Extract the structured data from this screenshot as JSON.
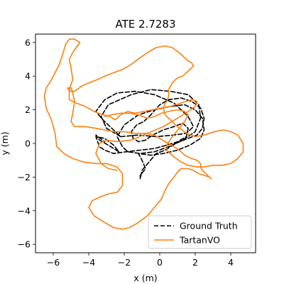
{
  "chart_data": {
    "type": "line",
    "title": "ATE 2.7283",
    "xlabel": "x (m)",
    "ylabel": "y (m)",
    "xlim": [
      -7.0,
      5.4
    ],
    "ylim": [
      -6.5,
      6.5
    ],
    "xticks": [
      -6,
      -4,
      -2,
      0,
      2,
      4
    ],
    "yticks": [
      -6,
      -4,
      -2,
      0,
      2,
      4,
      6
    ],
    "grid": false,
    "legend": "lower-right",
    "series": [
      {
        "name": "Ground Truth",
        "style": "dashed",
        "color": "#000000",
        "x": [
          -2.2,
          -1.2,
          -0.2,
          0.8,
          1.5,
          1.9,
          1.6,
          0.8,
          -0.3,
          -1.4,
          -2.4,
          -3.1,
          -3.6,
          -3.2,
          -2.7,
          -2.2,
          -3.0,
          -3.3,
          -2.9,
          -1.6,
          -0.5,
          0.6,
          1.6,
          2.2,
          2.3,
          2.0,
          1.3,
          0.5,
          -0.3,
          -1.1,
          -1.8,
          -2.1,
          -2.4,
          -2.0,
          -1.2,
          -0.3,
          0.6,
          1.4,
          2.0,
          2.4,
          2.5,
          2.3,
          1.7,
          1.0,
          0.2,
          -0.5,
          -1.2,
          -1.0,
          -0.8,
          -1.1,
          -1.1,
          -1.0,
          -0.6,
          -0.2,
          0.3,
          0.9,
          1.6,
          2.1,
          2.4,
          2.5,
          2.3,
          1.8,
          1.2,
          0.5,
          0.0,
          -0.5,
          -0.9,
          -1.3,
          -1.6,
          -1.5,
          -1.2,
          -0.8,
          -0.4,
          0.2,
          0.8,
          1.3,
          1.6,
          1.5,
          1.0,
          0.4,
          -0.3,
          -1.1,
          -1.9,
          -2.6,
          -3.1,
          -3.4,
          -3.6,
          -3.1,
          -2.6,
          -2.3,
          -2.9,
          -3.4,
          -3.6,
          -3.1
        ],
        "y": [
          0.4,
          0.5,
          0.4,
          0.5,
          0.6,
          1.0,
          1.6,
          2.4,
          2.9,
          3.1,
          3.0,
          2.6,
          1.9,
          1.4,
          0.9,
          0.4,
          0.9,
          1.6,
          2.3,
          2.9,
          3.2,
          3.1,
          2.9,
          2.3,
          1.5,
          0.7,
          0.2,
          -0.2,
          -0.5,
          -0.6,
          -0.5,
          -0.2,
          0.4,
          1.1,
          1.7,
          2.0,
          2.2,
          2.3,
          2.0,
          1.5,
          0.8,
          0.3,
          -0.1,
          -0.4,
          -0.6,
          -0.7,
          -0.6,
          -1.0,
          -1.5,
          -1.9,
          -2.1,
          -1.6,
          -1.1,
          -0.6,
          -0.4,
          0.0,
          0.3,
          0.5,
          0.9,
          1.5,
          2.1,
          2.5,
          2.7,
          2.6,
          2.3,
          1.7,
          1.3,
          1.1,
          0.7,
          0.3,
          0.1,
          0.2,
          0.5,
          0.8,
          1.0,
          1.2,
          0.9,
          0.4,
          0.1,
          -0.1,
          -0.3,
          -0.4,
          -0.5,
          -0.6,
          -0.4,
          -0.2,
          0.4,
          0.3,
          -0.1,
          -0.5,
          -0.1,
          0.2,
          0.5,
          0.1
        ]
      },
      {
        "name": "TartanVO",
        "style": "solid",
        "color": "#ff7f0e",
        "x": [
          -2.4,
          -2.9,
          -3.3,
          -3.6,
          -3.4,
          -3.0,
          -2.4,
          -1.6,
          -0.7,
          0.2,
          1.0,
          1.6,
          2.0,
          2.1,
          1.8,
          1.2,
          0.6,
          0.1,
          -0.4,
          -0.9,
          -1.4,
          -1.8,
          -2.2,
          -2.5,
          -2.8,
          -3.2,
          -3.7,
          -4.2,
          -4.7,
          -5.1,
          -5.1,
          -4.9,
          -5.0,
          -5.1,
          -4.9,
          -4.7,
          -4.5,
          -4.8,
          -5.1,
          -5.3,
          -5.5,
          -5.7,
          -6.0,
          -6.2,
          -6.4,
          -6.5,
          -6.4,
          -6.1,
          -5.9,
          -5.8,
          -5.4,
          -4.9,
          -4.3,
          -3.6,
          -3.0,
          -2.4,
          -2.1,
          -2.1,
          -2.4,
          -2.9,
          -3.4,
          -3.8,
          -4.0,
          -3.7,
          -3.1,
          -2.6,
          -2.1,
          -1.7,
          -1.2,
          -0.7,
          -0.3,
          0.1,
          0.3,
          0.5,
          0.8,
          1.0,
          1.2,
          1.6,
          1.9,
          2.2,
          2.5,
          2.8,
          2.9,
          2.8,
          2.6,
          2.4,
          2.3,
          2.3,
          2.1,
          1.8,
          1.4,
          1.1,
          0.8,
          0.5,
          0.3,
          0.0,
          -0.3,
          -0.8,
          -1.4,
          -2.0,
          -2.6,
          -3.1,
          -3.6,
          -4.2,
          -4.8,
          -5.0,
          -4.9,
          -4.8,
          -4.9,
          -5.0,
          -5.2,
          -5.1,
          -4.8,
          -4.4,
          -4.0,
          -3.5,
          -3.1,
          -2.6,
          -2.1,
          -1.6,
          -1.1,
          -0.7,
          -0.2,
          0.3,
          0.7,
          1.1,
          1.4,
          1.6,
          1.8,
          1.9,
          1.6,
          1.3,
          1.0,
          0.7,
          0.5,
          0.5,
          0.4,
          0.3,
          0.2,
          0.3,
          0.6,
          1.0,
          1.5,
          2.0,
          2.5,
          3.1,
          3.6,
          4.0,
          4.4,
          4.7,
          4.7,
          4.4,
          4.0,
          3.5,
          3.0,
          2.5,
          2.1,
          1.6,
          1.2,
          0.8,
          0.4,
          0.4,
          0.7,
          1.1,
          1.4,
          1.6,
          1.4,
          1.0,
          0.5,
          0.1,
          -0.3,
          -0.7,
          -1.2,
          -1.7,
          -2.2,
          -2.7,
          -3.1
        ],
        "y": [
          -1.6,
          -1.5,
          -1.2,
          -0.6,
          0.0,
          0.2,
          0.1,
          0.2,
          0.6,
          1.0,
          1.5,
          1.9,
          2.2,
          2.5,
          2.6,
          2.4,
          2.2,
          2.1,
          2.0,
          1.9,
          1.8,
          1.9,
          1.7,
          1.4,
          1.6,
          1.7,
          1.9,
          2.2,
          2.4,
          2.6,
          3.2,
          3.8,
          4.5,
          5.0,
          5.4,
          5.7,
          6.0,
          6.2,
          6.2,
          5.9,
          5.2,
          4.6,
          4.0,
          3.6,
          3.3,
          2.8,
          2.1,
          1.4,
          0.6,
          -0.2,
          -0.6,
          -0.9,
          -1.1,
          -1.2,
          -1.2,
          -1.4,
          -1.8,
          -2.5,
          -2.9,
          -3.0,
          -3.2,
          -3.4,
          -3.8,
          -4.3,
          -4.7,
          -5.0,
          -5.1,
          -5.0,
          -4.7,
          -4.3,
          -3.8,
          -3.3,
          -2.8,
          -2.4,
          -2.0,
          -1.7,
          -1.5,
          -1.5,
          -1.6,
          -1.8,
          -1.9,
          -2.0,
          -2.1,
          -2.0,
          -1.8,
          -1.6,
          -1.4,
          -1.2,
          -1.0,
          -0.9,
          -0.7,
          -0.4,
          -0.2,
          0.0,
          0.1,
          0.3,
          0.5,
          0.6,
          0.6,
          0.7,
          0.7,
          0.8,
          0.9,
          1.0,
          1.0,
          1.3,
          1.8,
          2.5,
          3.0,
          3.3,
          3.3,
          3.1,
          3.1,
          3.4,
          3.6,
          3.8,
          4.0,
          4.2,
          4.4,
          4.7,
          5.1,
          5.4,
          5.7,
          5.8,
          5.7,
          5.4,
          5.1,
          4.9,
          4.8,
          4.6,
          4.3,
          4.0,
          3.9,
          3.6,
          3.2,
          2.8,
          2.5,
          2.4,
          2.1,
          1.7,
          1.4,
          1.0,
          0.6,
          0.4,
          0.5,
          0.7,
          0.8,
          0.7,
          0.5,
          0.0,
          -0.5,
          -0.9,
          -1.2,
          -1.3,
          -1.3,
          -1.4,
          -1.4,
          -1.3,
          -1.1,
          -0.8,
          -0.4,
          -0.1,
          0.4,
          0.9,
          1.3,
          1.7,
          1.9,
          2.0,
          1.9,
          1.8,
          1.6,
          1.5,
          1.7,
          1.8,
          1.8,
          1.7,
          1.6
        ]
      }
    ]
  }
}
